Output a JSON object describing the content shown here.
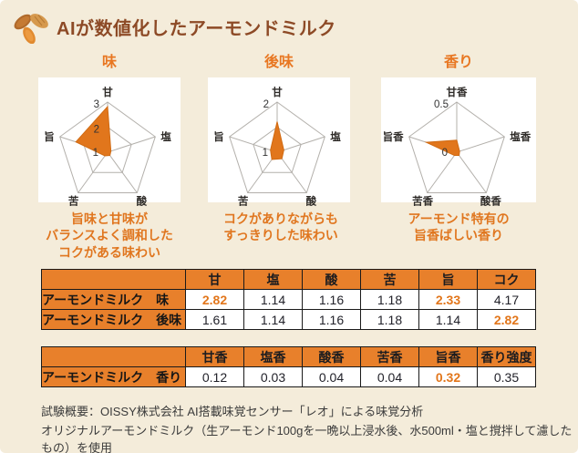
{
  "colors": {
    "background": "#f4ecda",
    "accent_orange": "#e87722",
    "title_brown": "#8d4a26",
    "radar_fill": "#e1761c",
    "radar_fill_stroke": "#d06a12",
    "radar_grid": "#b3b0ab",
    "radar_label": "#2e2b28",
    "table_cell_orange": "#e8802b",
    "table_text_dark": "#1c1c1f",
    "value_dark": "#22222a",
    "highlight_orange": "#e2761b",
    "footer_text": "#3b3b3b",
    "panel_white": "#ffffff"
  },
  "header": {
    "title": "AIが数値化したアーモンドミルク",
    "icon": "almond-icon"
  },
  "chart_data": [
    {
      "type": "radar",
      "title": "味",
      "axes": [
        "甘",
        "塩",
        "酸",
        "苦",
        "旨"
      ],
      "min": 1,
      "max": 3,
      "values": [
        2.82,
        1.14,
        1.16,
        1.18,
        2.33
      ],
      "rings": [
        0.5,
        1
      ],
      "ticks": [
        {
          "label": "3",
          "frac": 1
        },
        {
          "label": "2",
          "frac": 0.5
        },
        {
          "label": "1",
          "frac": 0
        }
      ],
      "caption": "旨味と甘味が\nバランスよく調和した\nコクがある味わい"
    },
    {
      "type": "radar",
      "title": "後味",
      "axes": [
        "甘",
        "塩",
        "酸",
        "苦",
        "旨"
      ],
      "min": 1,
      "max": 2,
      "values": [
        1.61,
        1.14,
        1.16,
        1.18,
        1.14
      ],
      "rings": [
        0.5,
        1
      ],
      "ticks": [
        {
          "label": "2",
          "frac": 1
        },
        {
          "label": "1",
          "frac": 0
        }
      ],
      "caption": "コクがありながらも\nすっきりした味わい"
    },
    {
      "type": "radar",
      "title": "香り",
      "axes": [
        "甘香",
        "塩香",
        "酸香",
        "苦香",
        "旨香"
      ],
      "min": 0,
      "max": 0.5,
      "values": [
        0.12,
        0.03,
        0.04,
        0.04,
        0.32
      ],
      "rings": [
        1
      ],
      "ticks": [
        {
          "label": "0.5",
          "frac": 1
        },
        {
          "label": "0",
          "frac": 0
        }
      ],
      "caption": "アーモンド特有の\n旨香ばしい香り"
    },
    {
      "type": "table",
      "name": "taste-table",
      "columns": [
        "甘",
        "塩",
        "酸",
        "苦",
        "旨",
        "コク"
      ],
      "rows": [
        {
          "label": "アーモンドミルク　味",
          "values": [
            2.82,
            1.14,
            1.16,
            1.18,
            2.33,
            4.17
          ],
          "highlight_cols": [
            0,
            4
          ]
        },
        {
          "label": "アーモンドミルク　後味",
          "values": [
            1.61,
            1.14,
            1.16,
            1.18,
            1.14,
            2.82
          ],
          "highlight_cols": [
            5
          ]
        }
      ]
    },
    {
      "type": "table",
      "name": "aroma-table",
      "columns": [
        "甘香",
        "塩香",
        "酸香",
        "苦香",
        "旨香",
        "香り強度"
      ],
      "rows": [
        {
          "label": "アーモンドミルク　香り",
          "values": [
            0.12,
            0.03,
            0.04,
            0.04,
            0.32,
            0.35
          ],
          "highlight_cols": [
            4
          ]
        }
      ]
    }
  ],
  "footer": {
    "line1": "試験概要：OISSY株式会社 AI搭載味覚センサー「レオ」による味覚分析",
    "line2": "オリジナルアーモンドミルク（生アーモンド100gを一晩以上浸水後、水500ml・塩と撹拌して濾したもの）を使用"
  }
}
